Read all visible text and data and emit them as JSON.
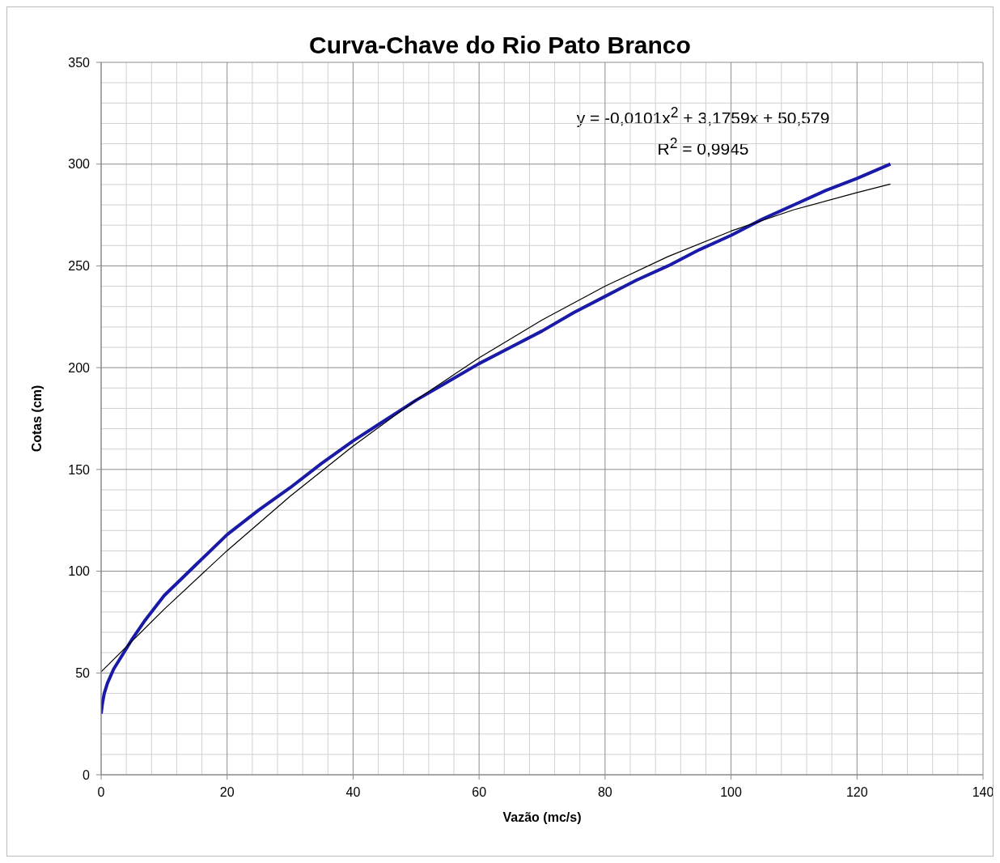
{
  "chart_data": {
    "type": "line",
    "title": "Curva-Chave do Rio Pato Branco",
    "xlabel": "Vazão (mc/s)",
    "ylabel": "Cotas (cm)",
    "annotations": [
      "y = -0,0101x$^{2}$ + 3,1759x + 50,579",
      "R$^{2}$ = 0,9945"
    ],
    "series": [
      {
        "color": "#1a1aa8",
        "x": [
          0,
          0.2,
          0.5,
          1,
          2,
          3,
          4,
          5,
          7,
          10,
          15,
          20,
          25,
          30,
          35,
          40,
          45,
          50,
          55,
          60,
          65,
          70,
          75,
          80,
          85,
          90,
          95,
          100,
          105,
          110,
          115,
          120,
          125.3
        ],
        "values": [
          30,
          35,
          40,
          45,
          52,
          57,
          62,
          67,
          76,
          88,
          103,
          118,
          130,
          141,
          153,
          164,
          174,
          184,
          193,
          202,
          210,
          218,
          227,
          235,
          243,
          250,
          258,
          265,
          273,
          280,
          287,
          293,
          300
        ]
      },
      {
        "color": "#000000",
        "x": [
          0,
          10,
          20,
          30,
          40,
          50,
          60,
          70,
          80,
          90,
          100,
          110,
          120,
          125.3
        ],
        "values": [
          50.6,
          81.3,
          110.1,
          136.8,
          161.5,
          184.1,
          204.8,
          223.4,
          240,
          254.6,
          267.1,
          277.6,
          286,
          290.2
        ]
      }
    ],
    "xlim": [
      0,
      140
    ],
    "xticks": [
      0,
      20,
      40,
      60,
      80,
      100,
      120,
      140
    ],
    "ylim": [
      0,
      350
    ],
    "yticks": [
      0,
      50,
      100,
      150,
      200,
      250,
      300,
      350
    ],
    "grid": true,
    "legend": false,
    "marker": "none",
    "line_style": "solid"
  }
}
